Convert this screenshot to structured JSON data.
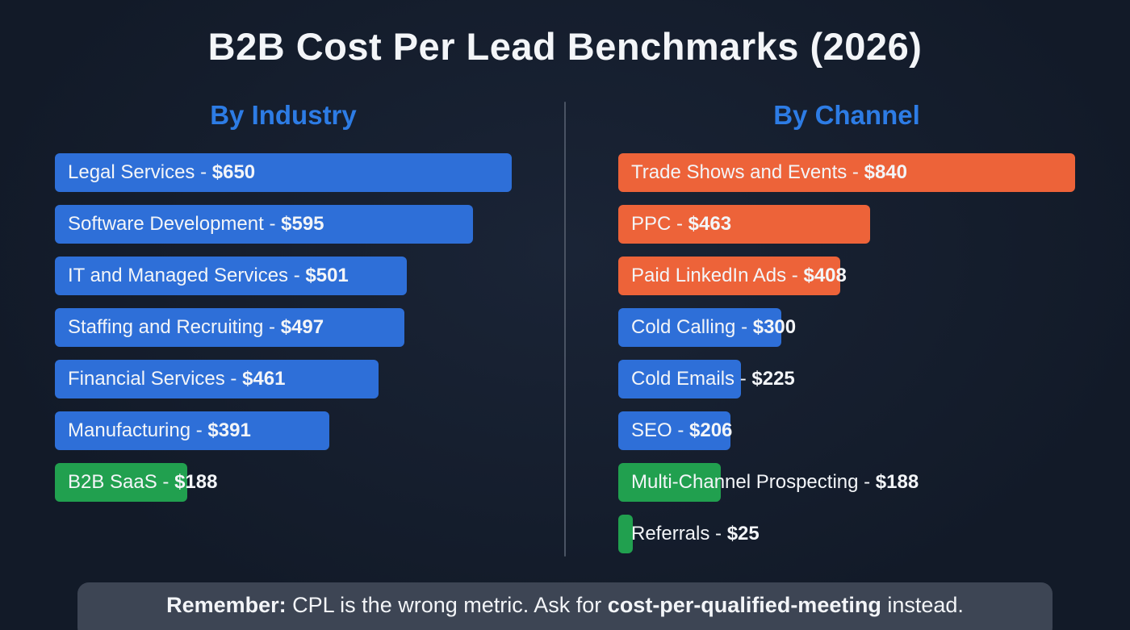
{
  "title": "B2B Cost Per Lead Benchmarks (2026)",
  "colors": {
    "background": "#121a28",
    "bg_light": "#1a2436",
    "blue": "#2e6fd8",
    "orange": "#ed6339",
    "green": "#21a04f",
    "heading": "#2d7ce5",
    "banner_bg": "#3d4554",
    "text": "#f3f5f8"
  },
  "chart_data": [
    {
      "type": "bar",
      "title": "By Industry",
      "orientation": "horizontal",
      "value_unit": "USD cost per lead",
      "value_prefix": "$",
      "max_value": 650,
      "items": [
        {
          "label": "Legal Services",
          "value": 650,
          "color": "blue"
        },
        {
          "label": "Software Development",
          "value": 595,
          "color": "blue"
        },
        {
          "label": "IT and Managed Services",
          "value": 501,
          "color": "blue"
        },
        {
          "label": "Staffing and Recruiting",
          "value": 497,
          "color": "blue"
        },
        {
          "label": "Financial Services",
          "value": 461,
          "color": "blue"
        },
        {
          "label": "Manufacturing",
          "value": 391,
          "color": "blue"
        },
        {
          "label": "B2B SaaS",
          "value": 188,
          "color": "green"
        }
      ]
    },
    {
      "type": "bar",
      "title": "By Channel",
      "orientation": "horizontal",
      "value_unit": "USD cost per lead",
      "value_prefix": "$",
      "max_value": 840,
      "items": [
        {
          "label": "Trade Shows and Events",
          "value": 840,
          "color": "orange"
        },
        {
          "label": "PPC",
          "value": 463,
          "color": "orange"
        },
        {
          "label": "Paid LinkedIn Ads",
          "value": 408,
          "color": "orange"
        },
        {
          "label": "Cold Calling",
          "value": 300,
          "color": "blue"
        },
        {
          "label": "Cold Emails",
          "value": 225,
          "color": "blue"
        },
        {
          "label": "SEO",
          "value": 206,
          "color": "blue"
        },
        {
          "label": "Multi-Channel Prospecting",
          "value": 188,
          "color": "green"
        },
        {
          "label": "Referrals",
          "value": 25,
          "color": "green"
        }
      ]
    }
  ],
  "footer": {
    "bold_prefix": "Remember:",
    "text_mid": " CPL is the wrong metric. Ask for ",
    "bold_term": "cost-per-qualified-meeting",
    "text_suffix": " instead."
  }
}
